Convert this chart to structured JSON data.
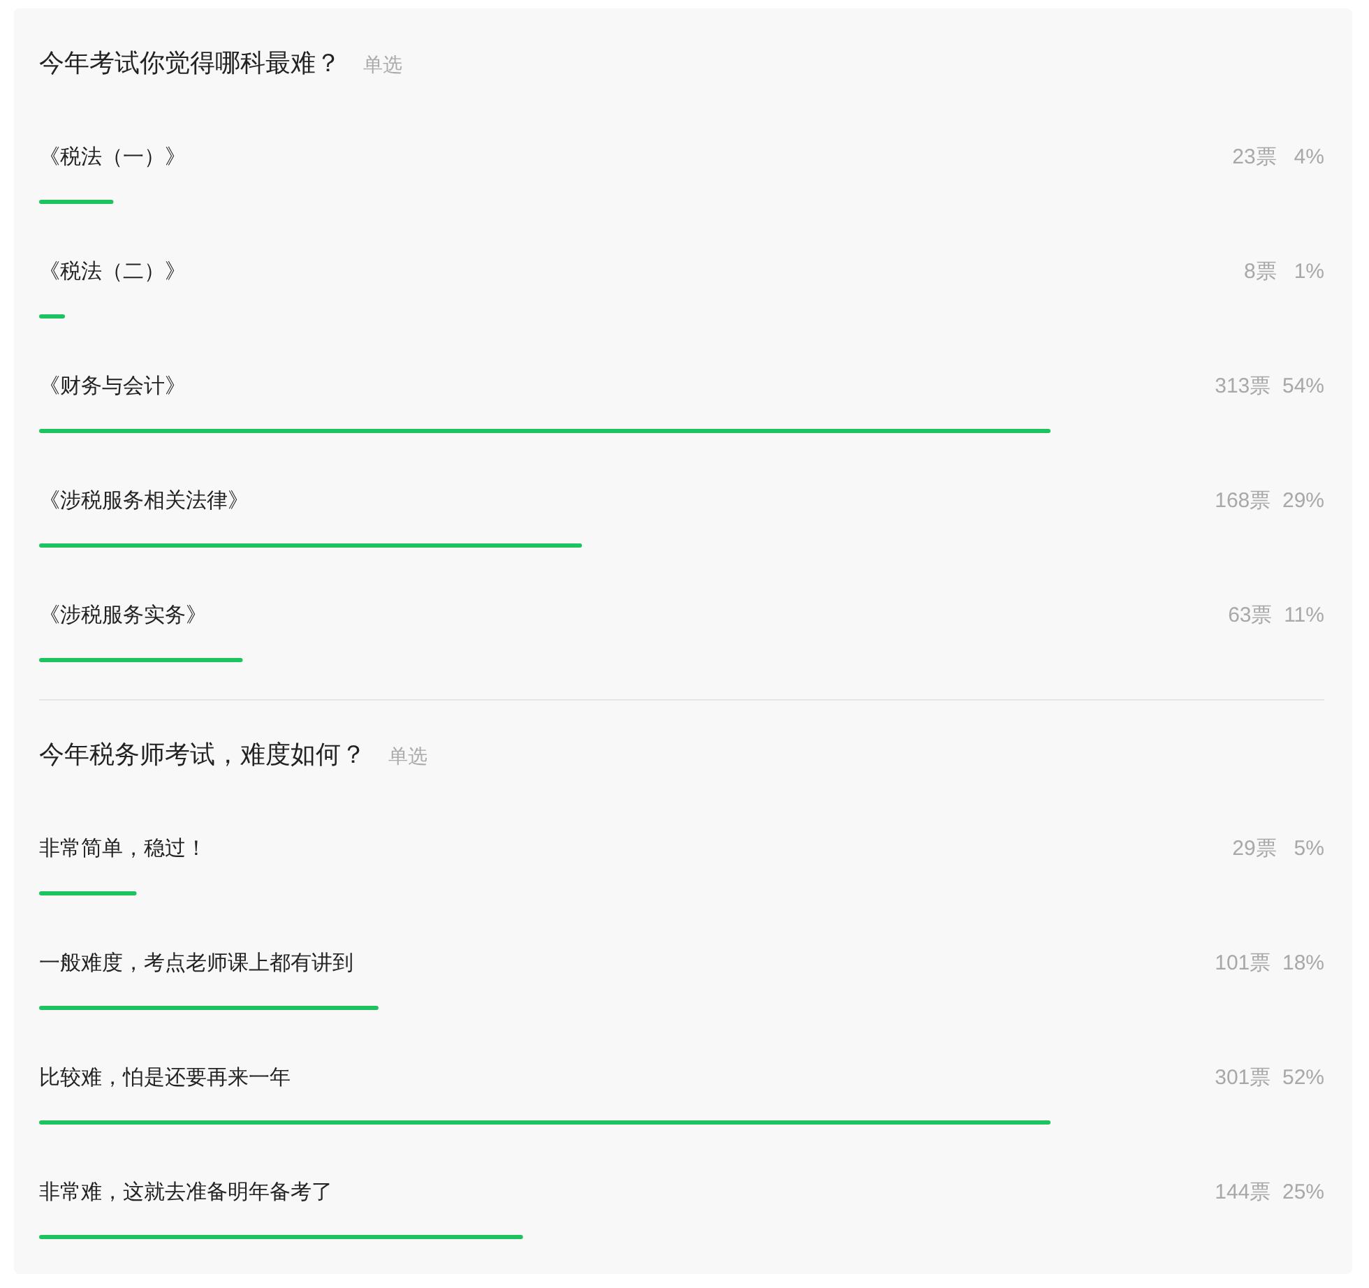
{
  "chart_data": [
    {
      "type": "bar",
      "orientation": "horizontal",
      "title": "今年考试你觉得哪科最难？",
      "subtitle": "单选",
      "color": "#1dc35e",
      "categories": [
        "《税法（一）》",
        "《税法（二）》",
        "《财务与会计》",
        "《涉税服务相关法律》",
        "《涉税服务实务》"
      ],
      "values": [
        23,
        8,
        313,
        168,
        63
      ],
      "value_labels": [
        "23票   4%",
        "8票   1%",
        "313票  54%",
        "168票  29%",
        "63票  11%"
      ]
    },
    {
      "type": "bar",
      "orientation": "horizontal",
      "title": "今年税务师考试，难度如何？",
      "subtitle": "单选",
      "color": "#1dc35e",
      "categories": [
        "非常简单，稳过！",
        "一般难度，考点老师课上都有讲到",
        "比较难，怕是还要再来一年",
        "非常难，这就去准备明年备考了"
      ],
      "values": [
        29,
        101,
        301,
        144
      ],
      "value_labels": [
        "29票   5%",
        "101票  18%",
        "301票  52%",
        "144票  25%"
      ]
    }
  ]
}
